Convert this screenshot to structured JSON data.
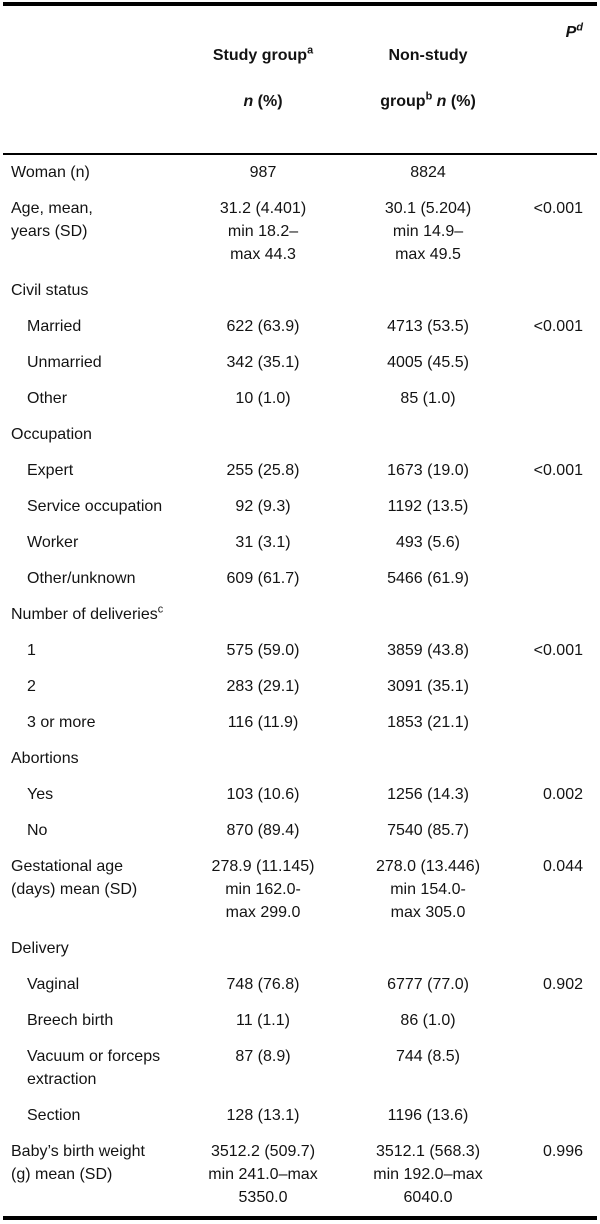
{
  "table": {
    "header": {
      "label": "",
      "study": {
        "line1": "Study group",
        "sup": "a",
        "n": "n",
        "pct": " (%)"
      },
      "nonstudy": {
        "line1": "Non-study",
        "line2_pre": "group",
        "sup": "b",
        "n": " n",
        "pct": " (%)"
      },
      "p": {
        "text": "P",
        "sup": "d"
      }
    },
    "rows": [
      {
        "label": "Woman (n)",
        "study": "987",
        "nonstudy": "8824"
      },
      {
        "label": "Age, mean,\nyears (SD)",
        "study": "31.2 (4.401)\nmin 18.2–\nmax 44.3",
        "nonstudy": "30.1 (5.204)\nmin 14.9–\nmax 49.5",
        "p": "<0.001"
      },
      {
        "label": "Civil status",
        "section": true
      },
      {
        "label": "Married",
        "indent": true,
        "study": "622 (63.9)",
        "nonstudy": "4713 (53.5)",
        "p": "<0.001"
      },
      {
        "label": "Unmarried",
        "indent": true,
        "study": "342 (35.1)",
        "nonstudy": "4005 (45.5)"
      },
      {
        "label": "Other",
        "indent": true,
        "study": "10 (1.0)",
        "nonstudy": "85 (1.0)"
      },
      {
        "label": "Occupation",
        "section": true
      },
      {
        "label": "Expert",
        "indent": true,
        "study": "255 (25.8)",
        "nonstudy": "1673 (19.0)",
        "p": "<0.001"
      },
      {
        "label": "Service occupation",
        "indent": true,
        "study": "92 (9.3)",
        "nonstudy": "1192 (13.5)"
      },
      {
        "label": "Worker",
        "indent": true,
        "study": "31 (3.1)",
        "nonstudy": "493 (5.6)"
      },
      {
        "label": "Other/unknown",
        "indent": true,
        "study": "609 (61.7)",
        "nonstudy": "5466 (61.9)"
      },
      {
        "label": "Number of deliveries",
        "label_sup": "c",
        "section": true
      },
      {
        "label": "1",
        "indent": true,
        "study": "575 (59.0)",
        "nonstudy": "3859 (43.8)",
        "p": "<0.001"
      },
      {
        "label": "2",
        "indent": true,
        "study": "283 (29.1)",
        "nonstudy": "3091 (35.1)"
      },
      {
        "label": "3 or more",
        "indent": true,
        "study": "116 (11.9)",
        "nonstudy": "1853 (21.1)"
      },
      {
        "label": "Abortions",
        "section": true
      },
      {
        "label": "Yes",
        "indent": true,
        "study": "103 (10.6)",
        "nonstudy": "1256 (14.3)",
        "p": "0.002"
      },
      {
        "label": "No",
        "indent": true,
        "study": "870 (89.4)",
        "nonstudy": "7540 (85.7)"
      },
      {
        "label": "Gestational age\n(days) mean (SD)",
        "study": "278.9 (11.145)\nmin 162.0-\nmax 299.0",
        "nonstudy": "278.0 (13.446)\nmin 154.0-\nmax 305.0",
        "p": "0.044"
      },
      {
        "label": "Delivery",
        "section": true
      },
      {
        "label": "Vaginal",
        "indent": true,
        "study": "748 (76.8)",
        "nonstudy": "6777 (77.0)",
        "p": "0.902"
      },
      {
        "label": "Breech birth",
        "indent": true,
        "study": "11 (1.1)",
        "nonstudy": "86 (1.0)"
      },
      {
        "label": "Vacuum or forceps\nextraction",
        "indent": true,
        "study": "87 (8.9)",
        "nonstudy": "744 (8.5)"
      },
      {
        "label": "Section",
        "indent": true,
        "study": "128 (13.1)",
        "nonstudy": "1196 (13.6)"
      },
      {
        "label": "Baby’s birth weight\n(g) mean (SD)",
        "study": "3512.2 (509.7)\nmin 241.0–max\n5350.0",
        "nonstudy": "3512.1 (568.3)\nmin 192.0–max\n6040.0",
        "p": "0.996"
      }
    ]
  }
}
